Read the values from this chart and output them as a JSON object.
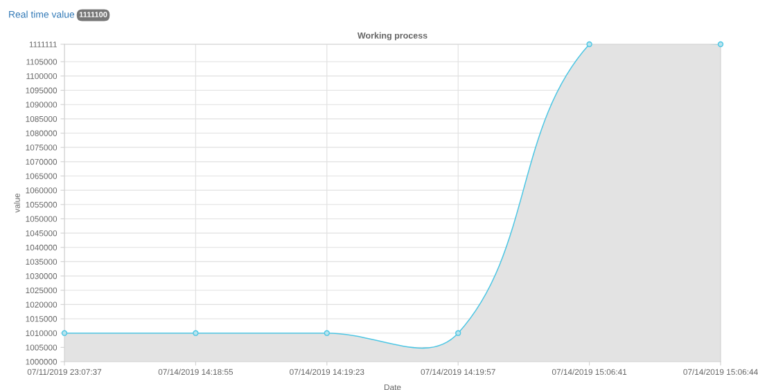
{
  "chart_data": {
    "type": "area",
    "title": "Working process",
    "xlabel": "Date",
    "ylabel": "value",
    "annotations": [
      "Real time value",
      "1111100"
    ],
    "categories": [
      "07/11/2019 23:07:37",
      "07/14/2019 14:18:55",
      "07/14/2019 14:19:23",
      "07/14/2019 14:19:57",
      "07/14/2019 15:06:41",
      "07/14/2019 15:06:44"
    ],
    "series": [
      {
        "color": "#4cc6e4",
        "values": [
          1010000,
          1010000,
          1010000,
          1010000,
          1111111,
          1111111
        ]
      }
    ],
    "ylim": [
      1000000,
      1111111
    ],
    "yticks": [
      1000000,
      1005000,
      1010000,
      1015000,
      1020000,
      1025000,
      1030000,
      1035000,
      1040000,
      1045000,
      1050000,
      1055000,
      1060000,
      1065000,
      1070000,
      1075000,
      1080000,
      1085000,
      1090000,
      1095000,
      1100000,
      1105000,
      1111111
    ],
    "grid": true,
    "marker": "circle"
  }
}
